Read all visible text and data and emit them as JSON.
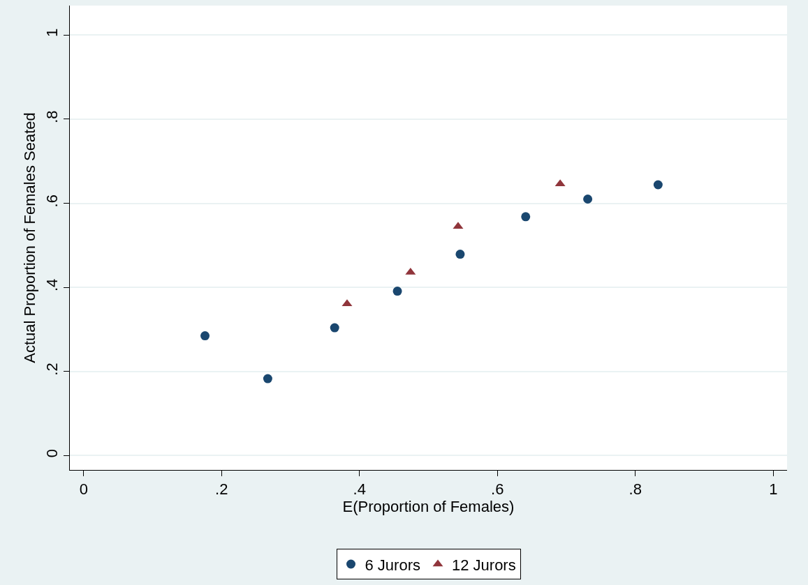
{
  "chart_data": {
    "type": "scatter",
    "xlabel": "E(Proportion of Females)",
    "ylabel": "Actual Proportion of Females Seated",
    "series": [
      {
        "name": "6 Jurors",
        "color": "#1a476f",
        "marker": "circle",
        "x": [
          0.176,
          0.267,
          0.364,
          0.455,
          0.546,
          0.641,
          0.731,
          0.833
        ],
        "values": [
          0.285,
          0.183,
          0.304,
          0.391,
          0.479,
          0.568,
          0.61,
          0.644
        ]
      },
      {
        "name": "12 Jurors",
        "color": "#90353b",
        "marker": "triangle",
        "x": [
          0.382,
          0.474,
          0.543,
          0.691
        ],
        "values": [
          0.361,
          0.436,
          0.545,
          0.646
        ]
      }
    ],
    "xlim": [
      -0.02,
      1.02
    ],
    "ylim": [
      -0.034,
      1.07
    ],
    "xticks": [
      0,
      {
        "value": 0.2,
        "label": ".2"
      },
      {
        "value": 0.4,
        "label": ".4"
      },
      {
        "value": 0.6,
        "label": ".6"
      },
      {
        "value": 0.8,
        "label": ".8"
      },
      1
    ],
    "yticks": [
      0,
      {
        "value": 0.2,
        "label": ".2"
      },
      {
        "value": 0.4,
        "label": ".4"
      },
      {
        "value": 0.6,
        "label": ".6"
      },
      {
        "value": 0.8,
        "label": ".8"
      },
      1
    ],
    "grid": "y",
    "legend": "bottom"
  }
}
